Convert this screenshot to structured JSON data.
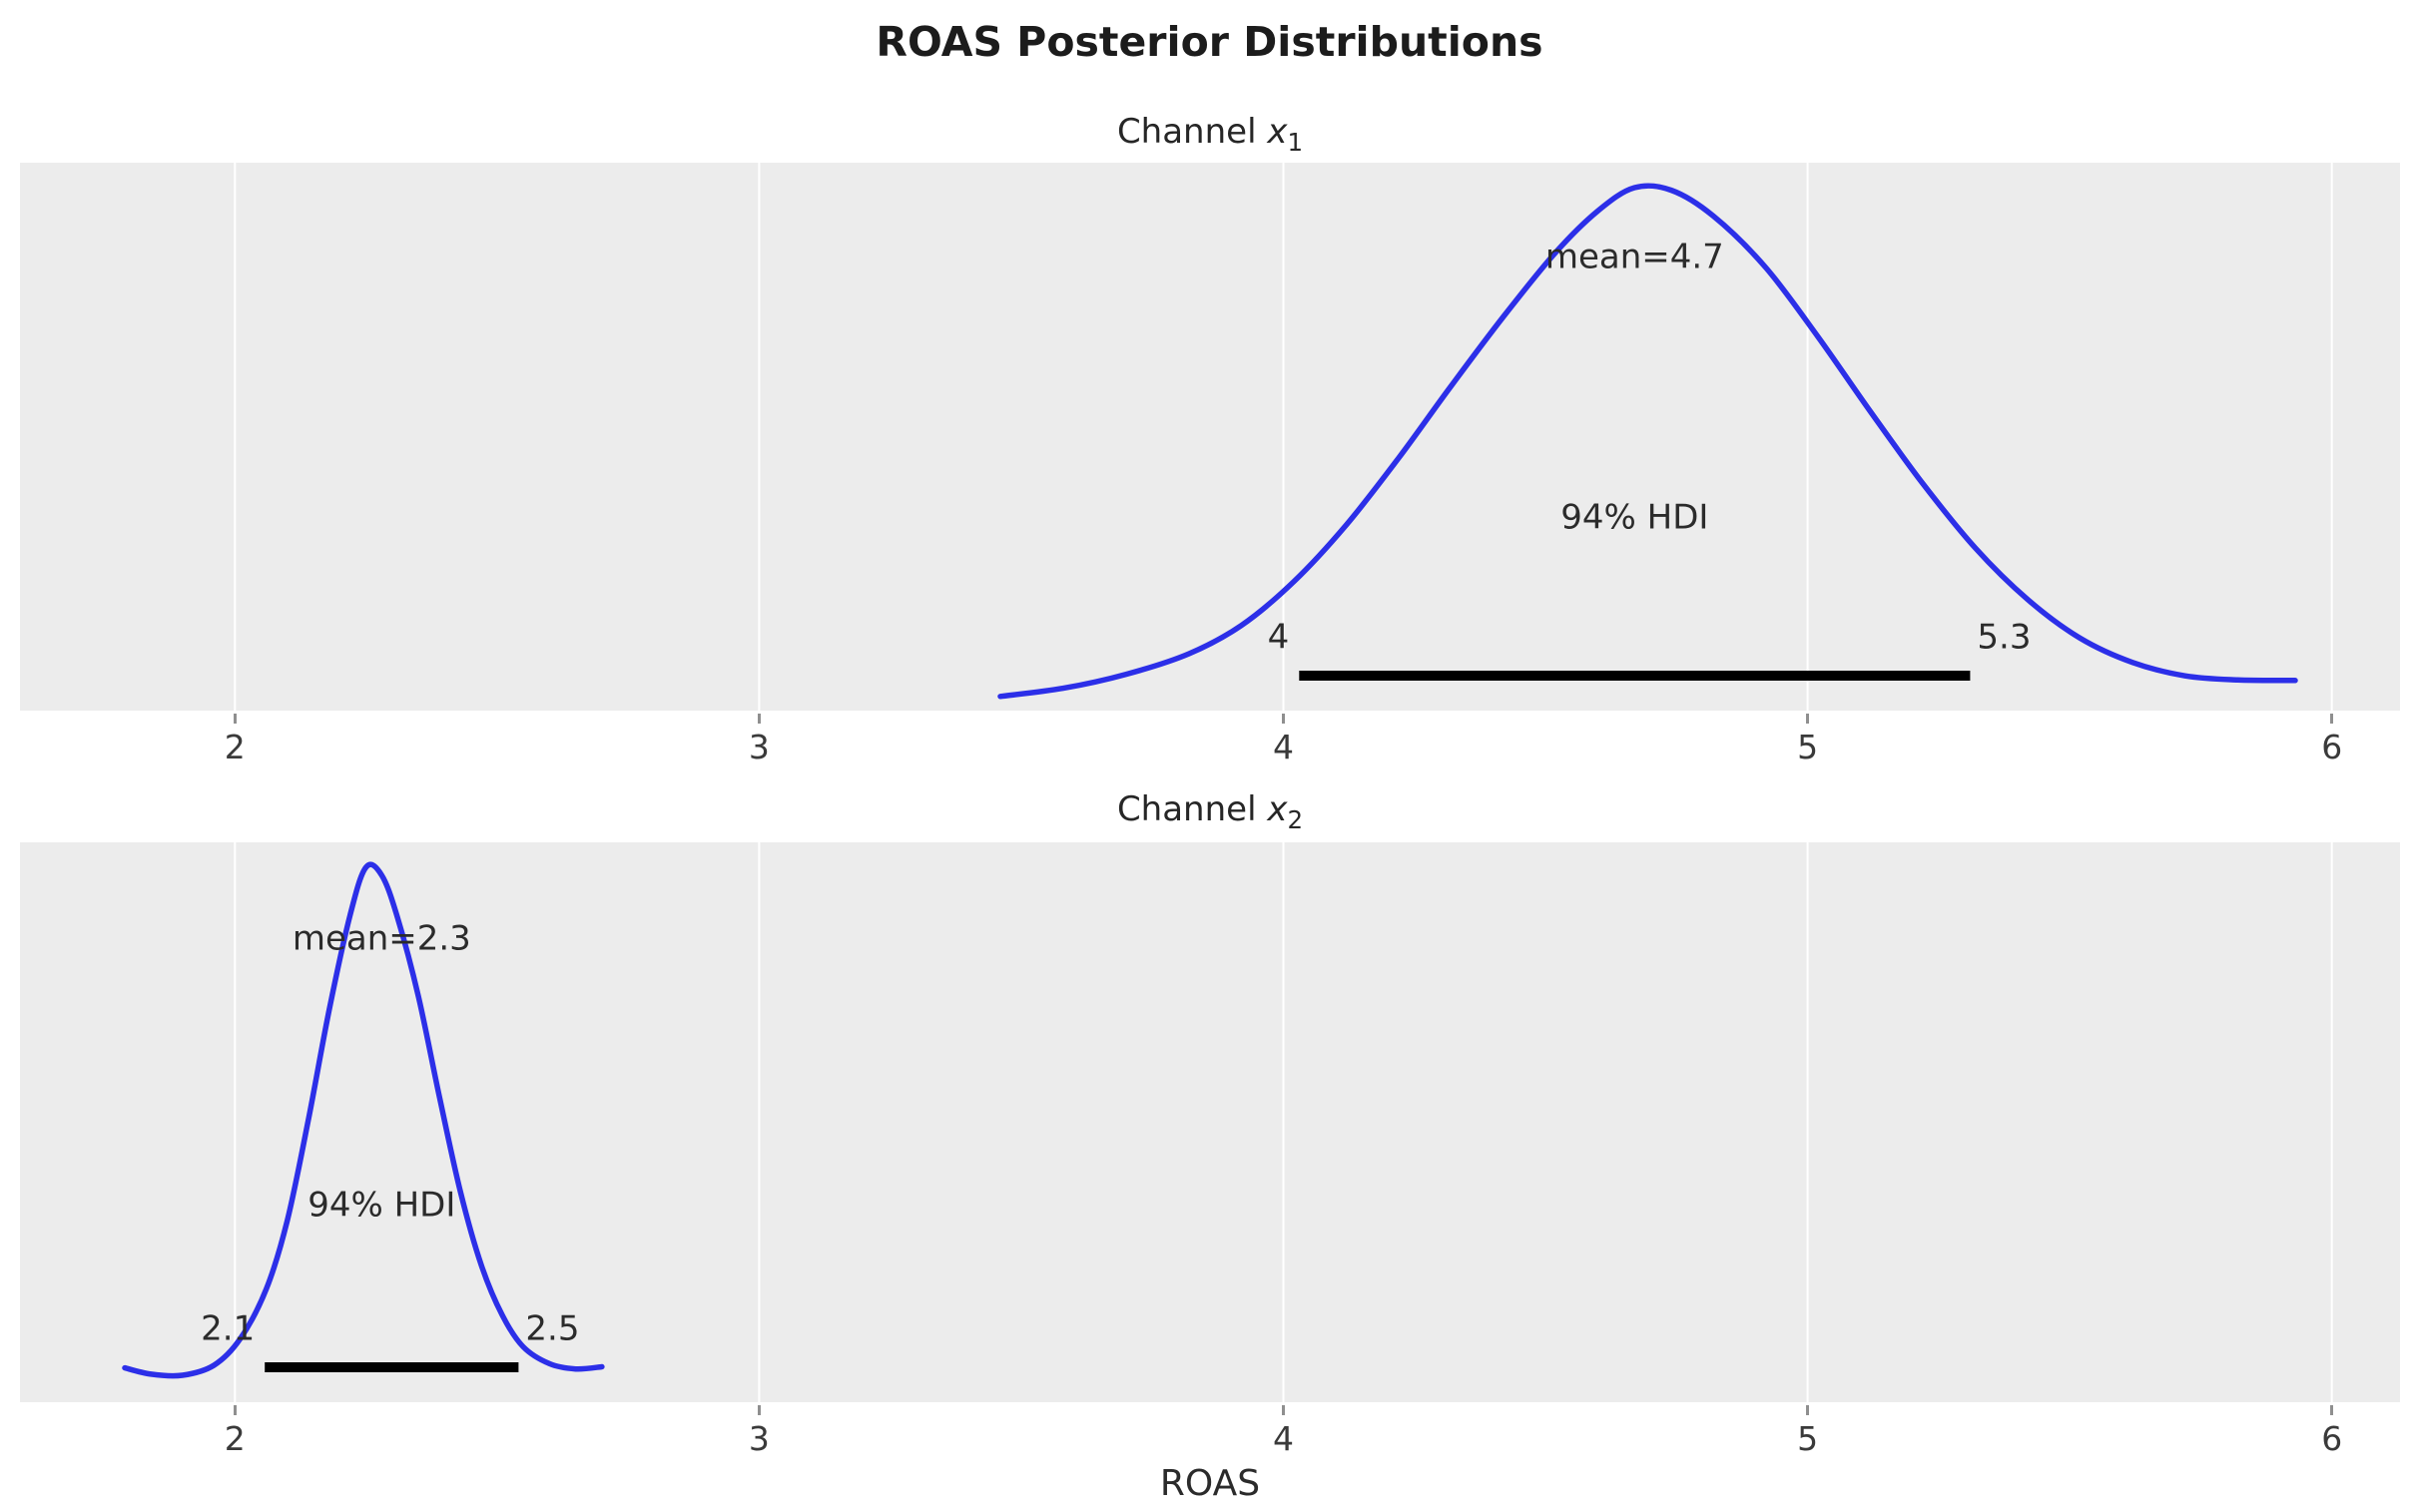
{
  "figure": {
    "title": "ROAS Posterior Distributions",
    "xlabel": "ROAS"
  },
  "style": {
    "curve_color": "#2c2fe8",
    "hdi_line_color": "#000000",
    "plot_bg": "#ececec",
    "grid_color": "#ffffff",
    "text_color": "#262626",
    "tick_mark_color": "#8f8f8f"
  },
  "x_axis": {
    "min": 1.59,
    "max": 6.13,
    "ticks": [
      2,
      3,
      4,
      5,
      6
    ],
    "tick_labels": [
      "2",
      "3",
      "4",
      "5",
      "6"
    ],
    "grid": true
  },
  "chart_data": [
    {
      "type": "area",
      "name": "channel-x1",
      "title": {
        "prefix": "Channel ",
        "var": "x",
        "sub": "1"
      },
      "mean": 4.7,
      "mean_label": "mean=4.7",
      "annotation_x": 4.67,
      "hdi": {
        "prob": "94%",
        "label": "94% HDI",
        "lower": 4.0,
        "upper": 5.3,
        "lower_label": "4",
        "upper_label": "5.3",
        "line_start": 4.03,
        "line_end": 5.31
      },
      "density": {
        "x": [
          3.46,
          3.58,
          3.7,
          3.82,
          3.92,
          4.02,
          4.12,
          4.22,
          4.32,
          4.42,
          4.52,
          4.6,
          4.67,
          4.74,
          4.82,
          4.92,
          5.02,
          5.12,
          5.22,
          5.32,
          5.42,
          5.52,
          5.62,
          5.72,
          5.82,
          5.93
        ],
        "y": [
          0.012,
          0.028,
          0.055,
          0.095,
          0.15,
          0.235,
          0.345,
          0.475,
          0.615,
          0.75,
          0.875,
          0.955,
          1.0,
          0.995,
          0.945,
          0.845,
          0.71,
          0.565,
          0.425,
          0.3,
          0.2,
          0.125,
          0.078,
          0.052,
          0.044,
          0.043
        ]
      }
    },
    {
      "type": "area",
      "name": "channel-x2",
      "title": {
        "prefix": "Channel ",
        "var": "x",
        "sub": "2"
      },
      "mean": 2.3,
      "mean_label": "mean=2.3",
      "annotation_x": 2.28,
      "hdi": {
        "prob": "94%",
        "label": "94% HDI",
        "lower": 2.1,
        "upper": 2.5,
        "lower_label": "2.1",
        "upper_label": "2.5",
        "line_start": 2.057,
        "line_end": 2.541
      },
      "density": {
        "x": [
          1.79,
          1.84,
          1.9,
          1.96,
          2.01,
          2.06,
          2.1,
          2.14,
          2.18,
          2.22,
          2.25,
          2.28,
          2.31,
          2.35,
          2.39,
          2.43,
          2.47,
          2.51,
          2.55,
          2.6,
          2.65,
          2.7
        ],
        "y": [
          0.05,
          0.038,
          0.036,
          0.055,
          0.105,
          0.2,
          0.33,
          0.52,
          0.73,
          0.91,
          1.0,
          0.985,
          0.905,
          0.755,
          0.565,
          0.385,
          0.245,
          0.15,
          0.09,
          0.058,
          0.048,
          0.052
        ]
      }
    }
  ]
}
